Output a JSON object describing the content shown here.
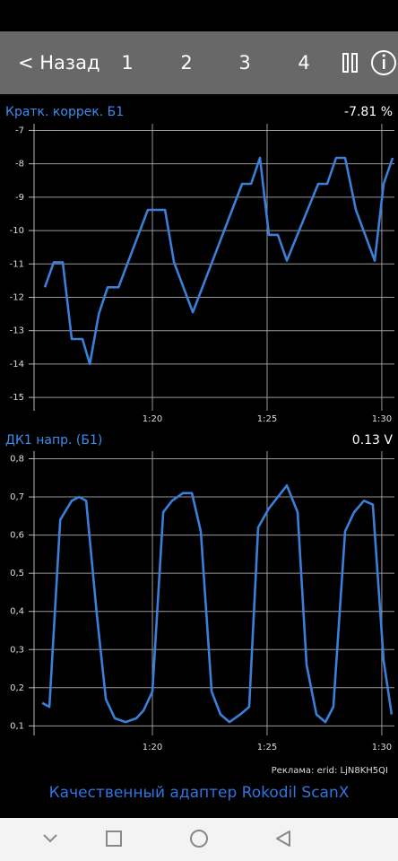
{
  "toolbar": {
    "back": "< Назад",
    "tabs": [
      "1",
      "2",
      "3",
      "4"
    ]
  },
  "chart_data": [
    {
      "type": "line",
      "title": "Кратк. коррек. Б1",
      "readout": "-7.81 %",
      "color": "#3a7fd8",
      "grid": true,
      "x": [
        75.31,
        75.7,
        76.09,
        76.48,
        76.95,
        77.27,
        77.66,
        78.05,
        78.52,
        79.8,
        80.55,
        80.94,
        81.76,
        83.91,
        84.3,
        84.69,
        85.08,
        85.47,
        85.86,
        87.23,
        87.62,
        88.01,
        88.4,
        88.87,
        89.69,
        90.08,
        90.47
      ],
      "values": [
        -11.7,
        -10.95,
        -10.95,
        -13.25,
        -13.25,
        -14,
        -12.5,
        -11.7,
        -11.7,
        -9.38,
        -9.38,
        -10.95,
        -12.45,
        -8.6,
        -8.6,
        -7.82,
        -10.13,
        -10.13,
        -10.9,
        -8.6,
        -8.6,
        -7.82,
        -7.82,
        -9.38,
        -10.9,
        -8.6,
        -7.82
      ],
      "xlim": [
        74.84,
        90.55
      ],
      "xticks": [
        {
          "value": 80,
          "label": "1:20"
        },
        {
          "value": 85,
          "label": "1:25"
        },
        {
          "value": 90,
          "label": "1:30"
        }
      ],
      "ylim": [
        -15.4,
        -6.8
      ],
      "yticks": [
        -7,
        -8,
        -9,
        -10,
        -11,
        -12,
        -13,
        -14,
        -15
      ]
    },
    {
      "type": "line",
      "title": "ДК1 напр. (Б1)",
      "readout": "0.13 V",
      "color": "#3a7fd8",
      "grid": true,
      "x": [
        75.2,
        75.51,
        75.98,
        76.48,
        76.8,
        77.11,
        77.58,
        77.97,
        78.36,
        78.83,
        79.3,
        79.61,
        80,
        80.47,
        80.86,
        81.33,
        81.72,
        82.11,
        82.58,
        82.97,
        83.36,
        83.83,
        84.22,
        84.61,
        85.08,
        85.47,
        85.86,
        86.33,
        86.72,
        87.15,
        87.54,
        87.89,
        88.4,
        88.79,
        89.22,
        89.61,
        90.08,
        90.43
      ],
      "values": [
        0.16,
        0.15,
        0.64,
        0.69,
        0.7,
        0.69,
        0.39,
        0.17,
        0.12,
        0.11,
        0.12,
        0.14,
        0.19,
        0.66,
        0.69,
        0.71,
        0.71,
        0.61,
        0.19,
        0.13,
        0.11,
        0.13,
        0.15,
        0.62,
        0.67,
        0.7,
        0.73,
        0.66,
        0.26,
        0.13,
        0.11,
        0.15,
        0.61,
        0.66,
        0.69,
        0.68,
        0.27,
        0.13
      ],
      "xlim": [
        74.84,
        90.55
      ],
      "xticks": [
        {
          "value": 80,
          "label": "1:20"
        },
        {
          "value": 85,
          "label": "1:25"
        },
        {
          "value": 90,
          "label": "1:30"
        }
      ],
      "ylim": [
        0.075,
        0.82
      ],
      "yticks": [
        {
          "value": 0.8,
          "label": "0,8"
        },
        {
          "value": 0.7,
          "label": "0,7"
        },
        {
          "value": 0.6,
          "label": "0,6"
        },
        {
          "value": 0.5,
          "label": "0,5"
        },
        {
          "value": 0.4,
          "label": "0,4"
        },
        {
          "value": 0.3,
          "label": "0,3"
        },
        {
          "value": 0.2,
          "label": "0,2"
        },
        {
          "value": 0.1,
          "label": "0,1"
        }
      ]
    }
  ],
  "ad_label": "Реклама: erid: LjN8KH5QI",
  "ad_text": "Качественный адаптер Rokodil ScanX"
}
